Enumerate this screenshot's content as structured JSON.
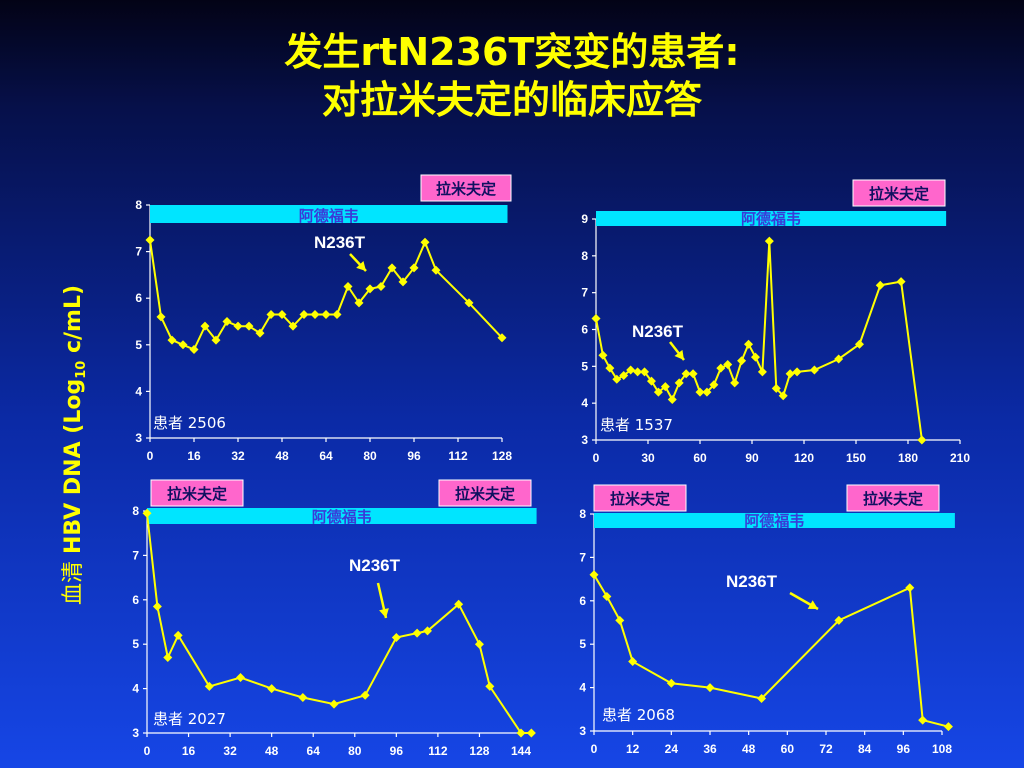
{
  "title": {
    "line1": "发生rtN236T突变的患者:",
    "line2": "对拉米夫定的临床应答"
  },
  "ylabel": {
    "prefix": "血清 ",
    "main": "HBV DNA (Log",
    "sub": "10",
    "suffix": " c/mL)"
  },
  "colors": {
    "line": "#ffff00",
    "drug_bar": "#00e5ff",
    "lam_box": "#ff66cc"
  },
  "chart_data": [
    {
      "type": "line",
      "patient": "患者 2506",
      "x_ticks": [
        0,
        16,
        32,
        48,
        64,
        80,
        96,
        112,
        128
      ],
      "y_ticks": [
        3,
        4,
        5,
        6,
        7,
        8
      ],
      "xlim": [
        0,
        128
      ],
      "ylim": [
        3,
        8
      ],
      "x": [
        0,
        4,
        8,
        12,
        16,
        20,
        24,
        28,
        32,
        36,
        40,
        44,
        48,
        52,
        56,
        60,
        64,
        68,
        72,
        76,
        80,
        84,
        88,
        92,
        96,
        100,
        104,
        116,
        128
      ],
      "y": [
        7.25,
        5.6,
        5.1,
        5.0,
        4.9,
        5.4,
        5.1,
        5.5,
        5.4,
        5.4,
        5.25,
        5.65,
        5.65,
        5.4,
        5.65,
        5.65,
        5.65,
        5.65,
        6.25,
        5.9,
        6.2,
        6.25,
        6.65,
        6.35,
        6.65,
        7.2,
        6.6,
        5.9,
        5.15
      ],
      "drug_bar_label": "阿德福韦",
      "drug_bar_range": [
        0,
        130
      ],
      "lam_labels": [
        "拉米夫定"
      ],
      "annotation": {
        "text": "N236T",
        "x": 80,
        "y": 6.2
      }
    },
    {
      "type": "line",
      "patient": "患者 1537",
      "x_ticks": [
        0,
        30,
        60,
        90,
        120,
        150,
        180,
        210
      ],
      "y_ticks": [
        3,
        4,
        5,
        6,
        7,
        8,
        9
      ],
      "xlim": [
        0,
        210
      ],
      "ylim": [
        3,
        9
      ],
      "x": [
        0,
        4,
        8,
        12,
        16,
        20,
        24,
        28,
        32,
        36,
        40,
        44,
        48,
        52,
        56,
        60,
        64,
        68,
        72,
        76,
        80,
        84,
        88,
        92,
        96,
        100,
        104,
        108,
        112,
        116,
        126,
        140,
        152,
        164,
        176,
        188
      ],
      "y": [
        6.3,
        5.3,
        4.95,
        4.65,
        4.75,
        4.9,
        4.85,
        4.85,
        4.6,
        4.3,
        4.45,
        4.1,
        4.55,
        4.8,
        4.8,
        4.3,
        4.3,
        4.5,
        4.95,
        5.05,
        4.55,
        5.15,
        5.6,
        5.25,
        4.85,
        8.4,
        4.4,
        4.2,
        4.8,
        4.85,
        4.9,
        5.2,
        5.6,
        7.2,
        7.3,
        3.0
      ],
      "drug_bar_label": "阿德福韦",
      "drug_bar_range": [
        0,
        202
      ],
      "lam_labels": [
        "拉米夫定"
      ],
      "annotation": {
        "text": "N236T",
        "x": 52,
        "y": 4.85
      }
    },
    {
      "type": "line",
      "patient": "患者 2027",
      "x_ticks": [
        0,
        16,
        32,
        48,
        64,
        80,
        96,
        112,
        128,
        144
      ],
      "y_ticks": [
        3,
        4,
        5,
        6,
        7,
        8
      ],
      "xlim": [
        0,
        144
      ],
      "ylim": [
        3,
        8
      ],
      "x": [
        0,
        4,
        8,
        12,
        24,
        36,
        48,
        60,
        72,
        84,
        96,
        104,
        108,
        120,
        128,
        132,
        144,
        148
      ],
      "y": [
        7.95,
        5.85,
        4.7,
        5.2,
        4.05,
        4.25,
        4.0,
        3.8,
        3.65,
        3.85,
        5.15,
        5.25,
        5.3,
        5.9,
        5.0,
        4.05,
        3.0,
        3.0
      ],
      "drug_bar_label": "阿德福韦",
      "drug_bar_range": [
        0,
        150
      ],
      "lam_labels": [
        "拉米夫定",
        "拉米夫定"
      ],
      "annotation": {
        "text": "N236T",
        "x": 96,
        "y": 5.4
      }
    },
    {
      "type": "line",
      "patient": "患者 2068",
      "x_ticks": [
        0,
        12,
        24,
        36,
        48,
        60,
        72,
        84,
        96,
        108
      ],
      "y_ticks": [
        3,
        4,
        5,
        6,
        7,
        8
      ],
      "xlim": [
        0,
        108
      ],
      "ylim": [
        3,
        8
      ],
      "x": [
        0,
        4,
        8,
        12,
        24,
        36,
        52,
        76,
        98,
        102,
        110
      ],
      "y": [
        6.6,
        6.1,
        5.55,
        4.6,
        4.1,
        4.0,
        3.75,
        5.55,
        6.3,
        3.25,
        3.1
      ],
      "drug_bar_label": "阿德福韦",
      "drug_bar_range": [
        0,
        112
      ],
      "lam_labels": [
        "拉米夫定",
        "拉米夫定"
      ],
      "annotation": {
        "text": "N236T",
        "x": 76,
        "y": 5.6
      }
    }
  ]
}
